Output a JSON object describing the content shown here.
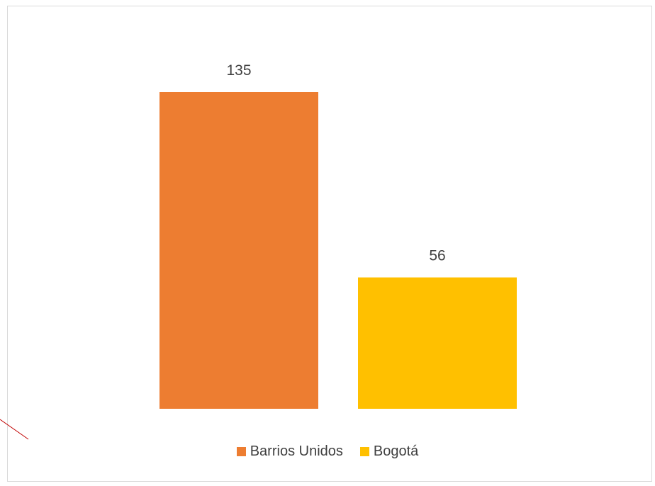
{
  "chart_data": {
    "type": "bar",
    "categories": [
      "Barrios Unidos",
      "Bogotá"
    ],
    "values": [
      135,
      56
    ],
    "colors": [
      "#ED7D31",
      "#FFC000"
    ],
    "data_labels": [
      "135",
      "56"
    ],
    "title": "",
    "xlabel": "",
    "ylabel": "",
    "ylim": [
      0,
      150
    ],
    "grid": false,
    "legend": {
      "position": "bottom",
      "entries": [
        "Barrios Unidos",
        "Bogotá"
      ]
    }
  },
  "annotation_color": "#c00000"
}
